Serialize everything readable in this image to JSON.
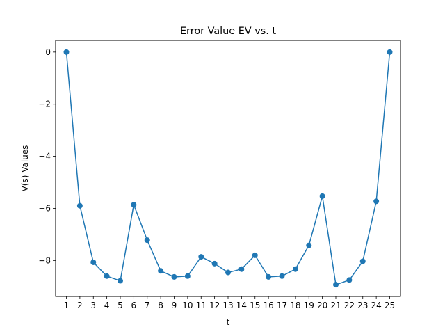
{
  "chart_data": {
    "type": "line",
    "title": "Error Value EV vs. t",
    "xlabel": "t",
    "ylabel": "V(s) Values",
    "x": [
      1,
      2,
      3,
      4,
      5,
      6,
      7,
      8,
      9,
      10,
      11,
      12,
      13,
      14,
      15,
      16,
      17,
      18,
      19,
      20,
      21,
      22,
      23,
      24,
      25
    ],
    "series": [
      {
        "values": [
          0,
          -5.9,
          -8.07,
          -8.6,
          -8.78,
          -5.86,
          -7.22,
          -8.4,
          -8.63,
          -8.6,
          -7.86,
          -8.12,
          -8.46,
          -8.33,
          -7.8,
          -8.63,
          -8.6,
          -8.33,
          -7.42,
          -5.53,
          -8.93,
          -8.75,
          -8.03,
          -5.73,
          0
        ],
        "color": "#1f77b4",
        "marker": "circle"
      }
    ],
    "xticks": [
      "1",
      "2",
      "3",
      "4",
      "5",
      "6",
      "7",
      "8",
      "9",
      "10",
      "11",
      "12",
      "13",
      "14",
      "15",
      "16",
      "17",
      "18",
      "19",
      "20",
      "21",
      "22",
      "23",
      "24",
      "25"
    ],
    "yticks": [
      0,
      -2,
      -4,
      -6,
      -8
    ],
    "ytick_labels": [
      "0",
      "−2",
      "−4",
      "−6",
      "−8"
    ],
    "xlim": [
      0.2,
      25.8
    ],
    "ylim": [
      -9.38,
      0.45
    ],
    "grid": false,
    "legend": false
  }
}
